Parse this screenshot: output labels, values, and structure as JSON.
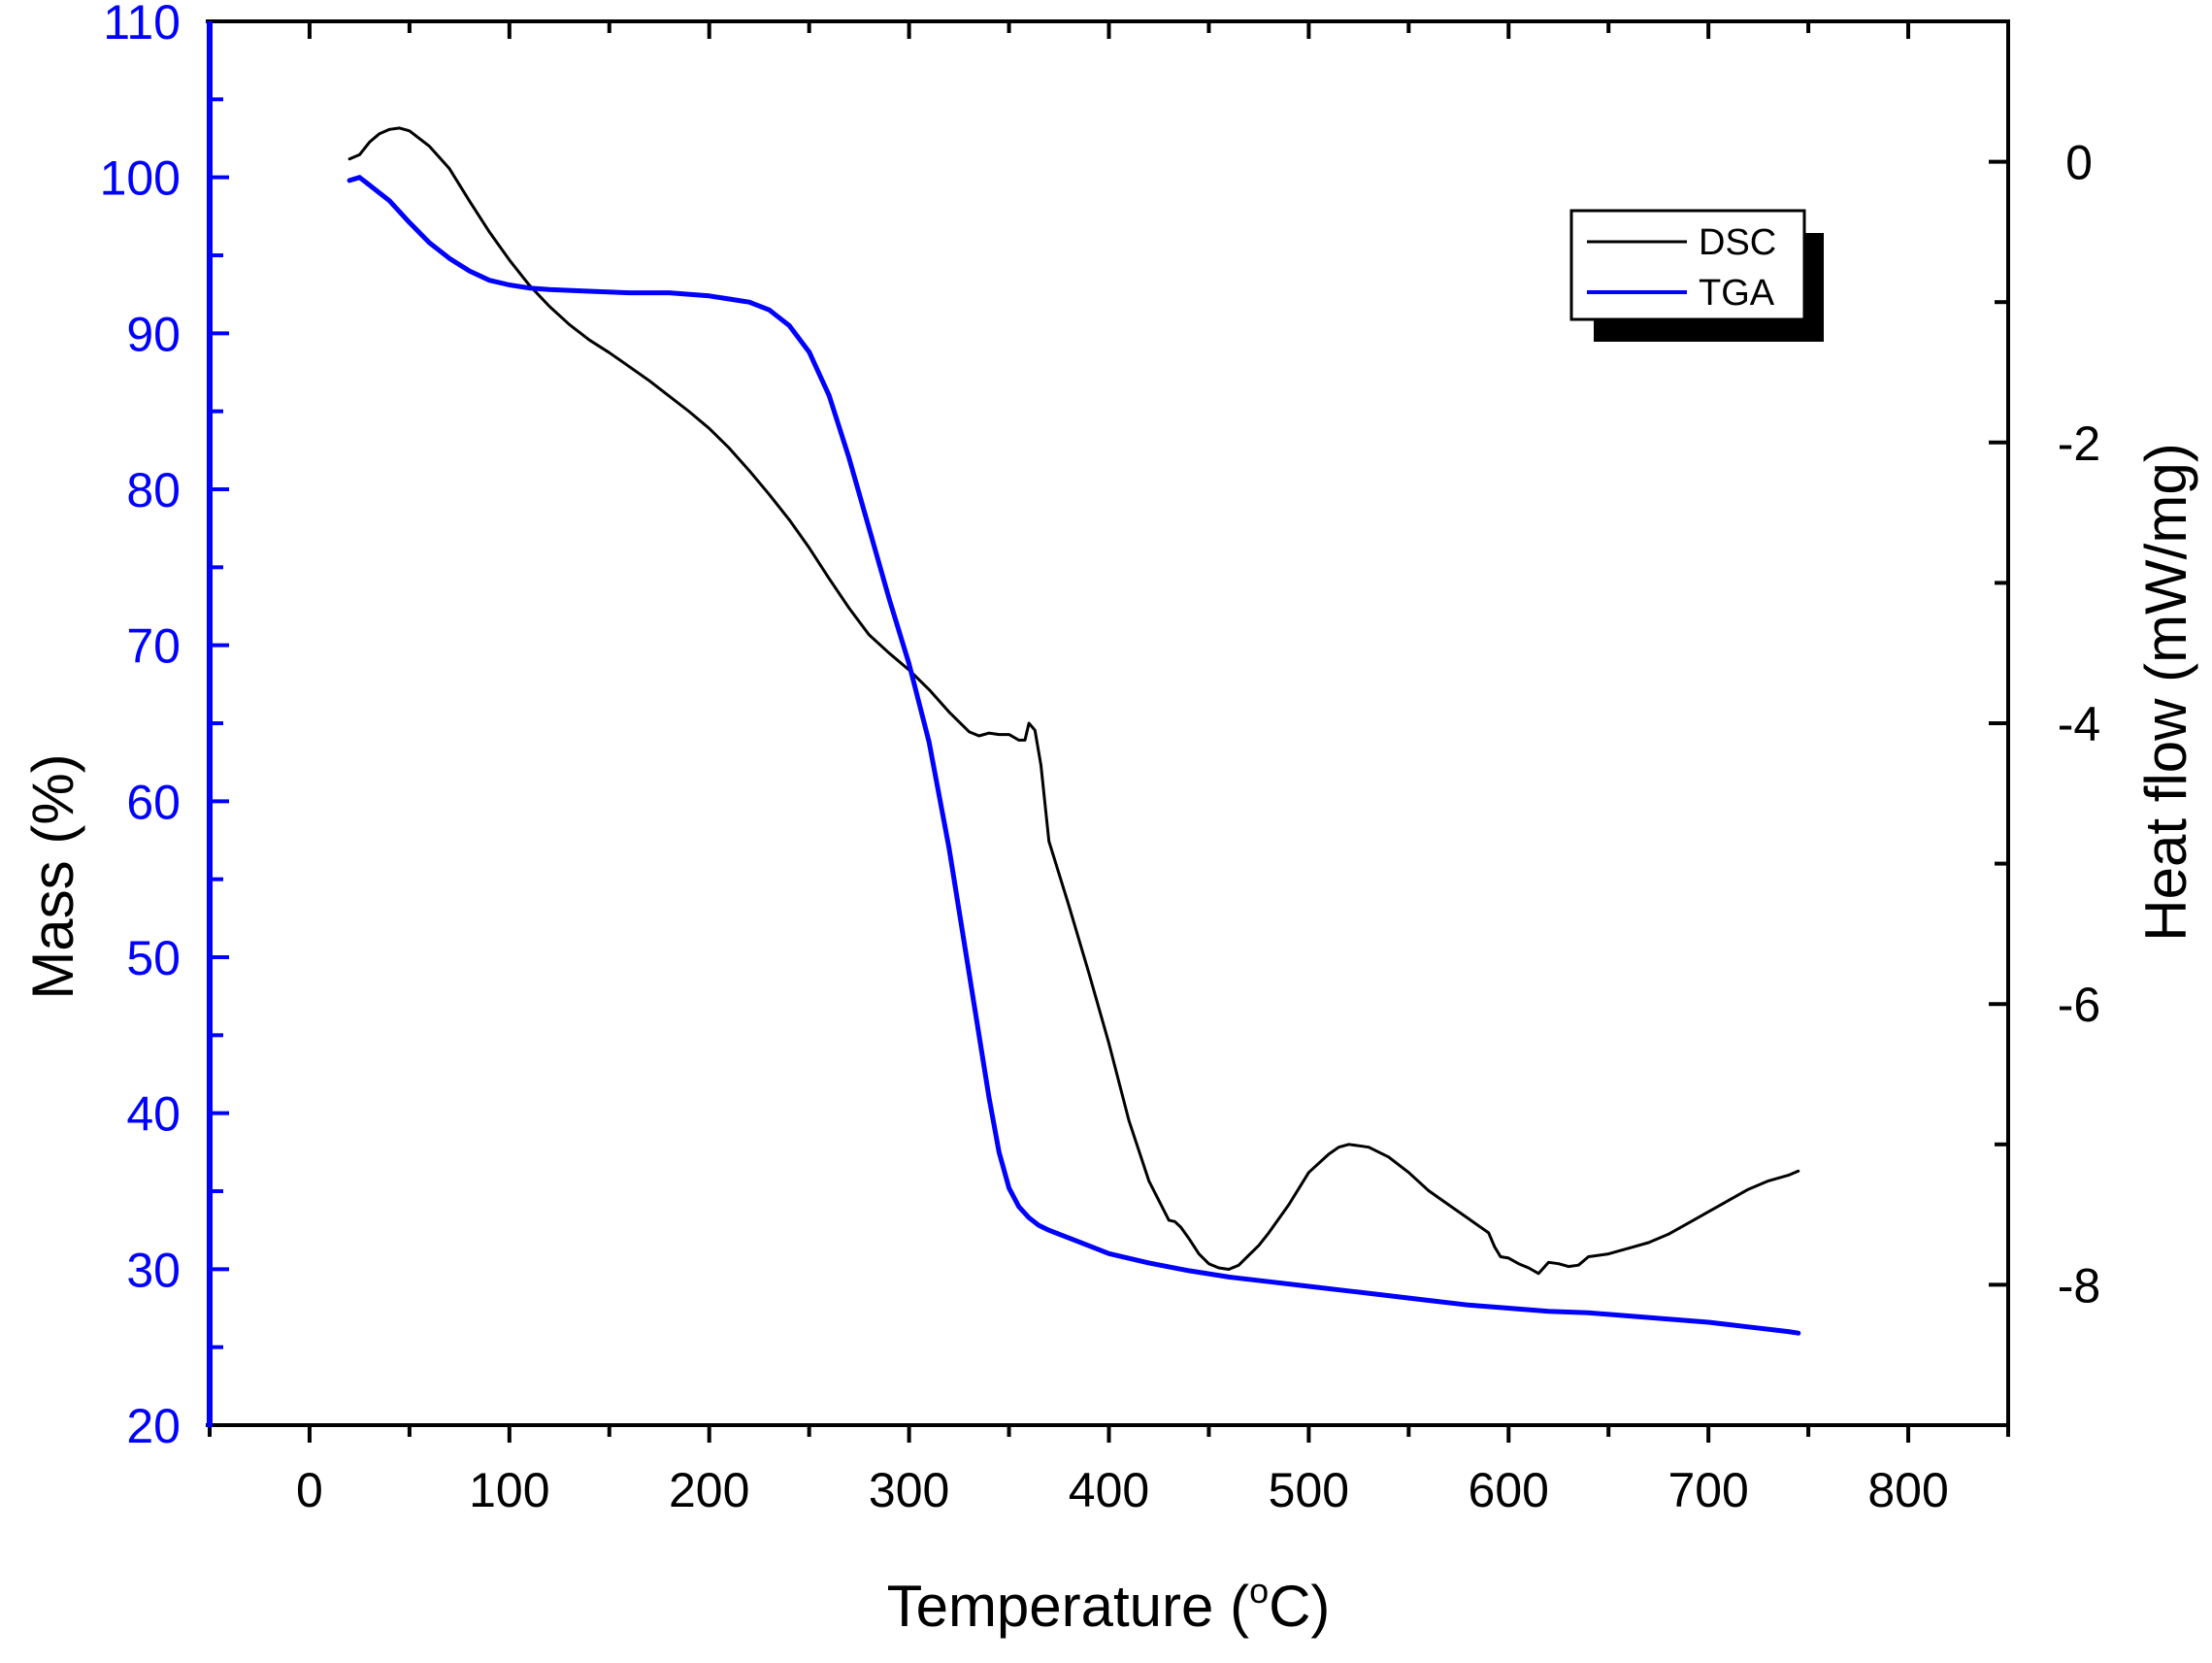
{
  "colors": {
    "dsc": "#000000",
    "tga": "#0000ff",
    "frame": "#000000",
    "left_axis": "#0000ff",
    "background": "#ffffff"
  },
  "chart_data": {
    "type": "line",
    "xlabel": "Temperature (°C)",
    "xlabel_main": "Temperature (",
    "xlabel_sup": "o",
    "xlabel_tail": "C)",
    "ylabel_left": "Mass (%)",
    "ylabel_right": "Heat flow (mW/mg)",
    "xlim": [
      -50,
      850
    ],
    "ylim_left": [
      20,
      110
    ],
    "ylim_right": [
      -9,
      1
    ],
    "x_ticks": [
      0,
      100,
      200,
      300,
      400,
      500,
      600,
      700,
      800
    ],
    "x_tick_labels": [
      "0",
      "100",
      "200",
      "300",
      "400",
      "500",
      "600",
      "700",
      "800"
    ],
    "y_left_ticks": [
      20,
      30,
      40,
      50,
      60,
      70,
      80,
      90,
      100,
      110
    ],
    "y_left_tick_labels": [
      "20",
      "30",
      "40",
      "50",
      "60",
      "70",
      "80",
      "90",
      "100",
      "110"
    ],
    "y_right_ticks": [
      0,
      -2,
      -4,
      -6,
      -8
    ],
    "y_right_tick_labels": [
      "0",
      "-2",
      "-4",
      "-6",
      "-8"
    ],
    "legend": {
      "position": "top-right",
      "entries": [
        "DSC",
        "TGA"
      ]
    },
    "series": [
      {
        "name": "DSC",
        "axis": "right",
        "x": [
          20,
          25,
          30,
          35,
          40,
          45,
          50,
          60,
          70,
          80,
          90,
          100,
          110,
          120,
          130,
          140,
          150,
          160,
          170,
          180,
          190,
          200,
          210,
          220,
          230,
          240,
          250,
          260,
          270,
          280,
          290,
          300,
          310,
          320,
          330,
          335,
          340,
          345,
          350,
          355,
          358,
          360,
          363,
          366,
          370,
          380,
          390,
          400,
          410,
          420,
          430,
          433,
          436,
          440,
          445,
          450,
          455,
          460,
          465,
          470,
          475,
          480,
          490,
          500,
          510,
          515,
          520,
          525,
          530,
          540,
          550,
          560,
          570,
          580,
          590,
          593,
          596,
          600,
          605,
          610,
          615,
          620,
          625,
          630,
          635,
          640,
          650,
          660,
          670,
          680,
          690,
          700,
          710,
          720,
          730,
          740,
          745
        ],
        "y": [
          0.02,
          0.05,
          0.14,
          0.2,
          0.23,
          0.24,
          0.22,
          0.11,
          -0.05,
          -0.28,
          -0.5,
          -0.7,
          -0.88,
          -1.03,
          -1.16,
          -1.27,
          -1.36,
          -1.46,
          -1.56,
          -1.67,
          -1.78,
          -1.9,
          -2.04,
          -2.2,
          -2.37,
          -2.55,
          -2.75,
          -2.97,
          -3.18,
          -3.37,
          -3.5,
          -3.62,
          -3.76,
          -3.92,
          -4.06,
          -4.09,
          -4.07,
          -4.08,
          -4.08,
          -4.12,
          -4.12,
          -4.0,
          -4.05,
          -4.3,
          -4.84,
          -5.3,
          -5.78,
          -6.28,
          -6.83,
          -7.26,
          -7.54,
          -7.55,
          -7.59,
          -7.67,
          -7.78,
          -7.85,
          -7.88,
          -7.89,
          -7.86,
          -7.79,
          -7.72,
          -7.63,
          -7.43,
          -7.2,
          -7.07,
          -7.02,
          -7.0,
          -7.01,
          -7.02,
          -7.09,
          -7.2,
          -7.33,
          -7.43,
          -7.53,
          -7.63,
          -7.73,
          -7.8,
          -7.81,
          -7.85,
          -7.88,
          -7.92,
          -7.84,
          -7.85,
          -7.87,
          -7.86,
          -7.8,
          -7.78,
          -7.74,
          -7.7,
          -7.64,
          -7.56,
          -7.48,
          -7.4,
          -7.32,
          -7.26,
          -7.22,
          -7.19
        ]
      },
      {
        "name": "TGA",
        "axis": "left",
        "x": [
          20,
          25,
          30,
          40,
          50,
          60,
          70,
          80,
          90,
          100,
          110,
          120,
          140,
          160,
          180,
          200,
          210,
          220,
          230,
          240,
          250,
          260,
          270,
          280,
          290,
          300,
          310,
          320,
          325,
          330,
          335,
          340,
          345,
          350,
          355,
          360,
          365,
          370,
          380,
          390,
          400,
          420,
          440,
          460,
          480,
          500,
          520,
          540,
          560,
          580,
          600,
          620,
          640,
          660,
          680,
          700,
          720,
          740,
          745
        ],
        "y": [
          99.8,
          100.0,
          99.5,
          98.5,
          97.1,
          95.8,
          94.8,
          94.0,
          93.4,
          93.1,
          92.9,
          92.8,
          92.7,
          92.6,
          92.6,
          92.4,
          92.2,
          92.0,
          91.5,
          90.5,
          88.8,
          86.0,
          82.0,
          77.5,
          73.0,
          68.8,
          63.8,
          57.0,
          53.0,
          49.0,
          45.0,
          41.0,
          37.5,
          35.2,
          34.0,
          33.3,
          32.8,
          32.5,
          32.0,
          31.5,
          31.0,
          30.4,
          29.9,
          29.5,
          29.2,
          28.9,
          28.6,
          28.3,
          28.0,
          27.7,
          27.5,
          27.3,
          27.2,
          27.0,
          26.8,
          26.6,
          26.3,
          26.0,
          25.9
        ]
      }
    ]
  }
}
